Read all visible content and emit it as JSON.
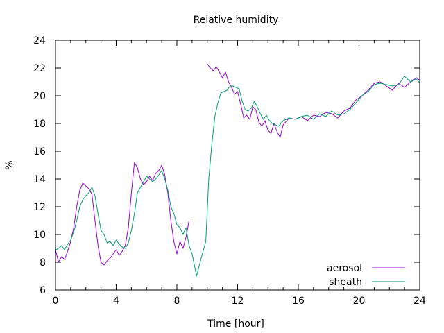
{
  "chart_data": {
    "type": "line",
    "title": "Relative humidity",
    "xlabel": "Time [hour]",
    "ylabel": "%",
    "xlim": [
      0,
      24
    ],
    "ylim": [
      6,
      24
    ],
    "xticks": [
      0,
      4,
      8,
      12,
      16,
      20,
      24
    ],
    "yticks": [
      6,
      8,
      10,
      12,
      14,
      16,
      18,
      20,
      22,
      24
    ],
    "grid": false,
    "legend_position": "bottom-right",
    "series": [
      {
        "name": "aerosol",
        "color": "#9400d3",
        "x": [
          0,
          0.2,
          0.4,
          0.6,
          0.8,
          1.0,
          1.2,
          1.4,
          1.6,
          1.8,
          2.0,
          2.2,
          2.4,
          2.6,
          2.8,
          3.0,
          3.2,
          3.4,
          3.6,
          3.8,
          4.0,
          4.2,
          4.4,
          4.6,
          4.8,
          5.0,
          5.2,
          5.4,
          5.6,
          5.8,
          6.0,
          6.2,
          6.4,
          6.6,
          6.8,
          7.0,
          7.2,
          7.4,
          7.6,
          7.8,
          8.0,
          8.2,
          8.4,
          8.6,
          8.8,
          null,
          10.0,
          10.2,
          10.4,
          10.6,
          10.8,
          11.0,
          11.2,
          11.4,
          11.6,
          11.8,
          12.0,
          12.2,
          12.4,
          12.6,
          12.8,
          13.0,
          13.2,
          13.4,
          13.6,
          13.8,
          14.0,
          14.2,
          14.4,
          14.6,
          14.8,
          15.0,
          15.4,
          15.8,
          16.2,
          16.6,
          17.0,
          17.4,
          17.8,
          18.2,
          18.6,
          19.0,
          19.4,
          19.8,
          20.2,
          20.6,
          21.0,
          21.4,
          21.8,
          22.2,
          22.6,
          23.0,
          23.4,
          23.8,
          24.0
        ],
        "y": [
          8.9,
          8.0,
          8.4,
          8.2,
          8.8,
          9.5,
          10.5,
          12.0,
          13.2,
          13.7,
          13.5,
          13.3,
          12.9,
          11.0,
          9.2,
          8.0,
          7.8,
          8.1,
          8.3,
          8.6,
          8.9,
          8.5,
          8.8,
          9.2,
          10.5,
          13.0,
          15.2,
          14.8,
          14.0,
          13.6,
          13.8,
          14.2,
          13.9,
          14.4,
          14.6,
          15.0,
          14.3,
          13.0,
          11.0,
          9.5,
          8.6,
          9.5,
          9.0,
          9.8,
          11.0,
          null,
          22.3,
          22.0,
          21.8,
          22.1,
          21.7,
          21.3,
          21.7,
          21.0,
          20.6,
          20.1,
          20.3,
          19.4,
          18.4,
          18.6,
          18.3,
          19.2,
          19.0,
          18.1,
          17.8,
          18.2,
          17.5,
          17.3,
          18.0,
          17.4,
          17.0,
          17.9,
          18.4,
          18.3,
          18.5,
          18.2,
          18.6,
          18.5,
          18.8,
          18.7,
          18.4,
          18.9,
          19.1,
          19.7,
          20.0,
          20.4,
          20.9,
          21.0,
          20.7,
          20.4,
          20.9,
          20.6,
          21.0,
          21.3,
          21.1
        ]
      },
      {
        "name": "sheath",
        "color": "#009e73",
        "x": [
          0,
          0.2,
          0.4,
          0.6,
          0.8,
          1.0,
          1.2,
          1.4,
          1.6,
          1.8,
          2.0,
          2.2,
          2.4,
          2.6,
          2.8,
          3.0,
          3.2,
          3.4,
          3.6,
          3.8,
          4.0,
          4.2,
          4.4,
          4.6,
          4.8,
          5.0,
          5.2,
          5.4,
          5.6,
          5.8,
          6.0,
          6.2,
          6.4,
          6.6,
          6.8,
          7.0,
          7.2,
          7.4,
          7.6,
          7.8,
          8.0,
          8.2,
          8.4,
          8.6,
          8.8,
          9.0,
          9.3,
          9.6,
          9.9,
          10.1,
          10.3,
          10.5,
          10.7,
          10.9,
          11.1,
          11.3,
          11.5,
          11.7,
          11.9,
          12.1,
          12.3,
          12.5,
          12.7,
          12.9,
          13.1,
          13.3,
          13.5,
          13.7,
          13.9,
          14.1,
          14.3,
          14.5,
          14.7,
          15.0,
          15.4,
          15.8,
          16.2,
          16.6,
          17.0,
          17.4,
          17.8,
          18.2,
          18.6,
          19.0,
          19.4,
          19.8,
          20.2,
          20.6,
          21.0,
          21.4,
          21.8,
          22.2,
          22.6,
          23.0,
          23.4,
          23.8,
          24.0
        ],
        "y": [
          8.9,
          9.0,
          9.2,
          8.9,
          9.3,
          9.6,
          10.2,
          11.0,
          12.0,
          12.5,
          12.8,
          13.0,
          13.4,
          12.8,
          11.5,
          10.3,
          10.0,
          9.4,
          9.5,
          9.2,
          9.6,
          9.3,
          9.1,
          9.0,
          9.4,
          10.3,
          11.5,
          13.0,
          13.4,
          13.8,
          14.2,
          14.0,
          13.8,
          14.0,
          14.3,
          14.6,
          14.0,
          13.2,
          12.0,
          11.5,
          10.7,
          10.5,
          10.0,
          10.5,
          9.2,
          8.6,
          7.0,
          8.3,
          9.5,
          14.0,
          16.5,
          18.5,
          19.5,
          20.2,
          20.3,
          20.4,
          20.7,
          20.7,
          20.6,
          20.5,
          19.6,
          19.0,
          18.9,
          19.1,
          19.6,
          19.2,
          18.7,
          18.3,
          18.6,
          18.2,
          18.0,
          17.9,
          17.8,
          18.2,
          18.4,
          18.3,
          18.5,
          18.6,
          18.3,
          18.7,
          18.5,
          18.9,
          18.6,
          18.7,
          19.0,
          19.5,
          20.0,
          20.3,
          20.8,
          20.9,
          20.8,
          20.7,
          20.8,
          21.4,
          21.0,
          21.2,
          20.9
        ]
      }
    ]
  }
}
